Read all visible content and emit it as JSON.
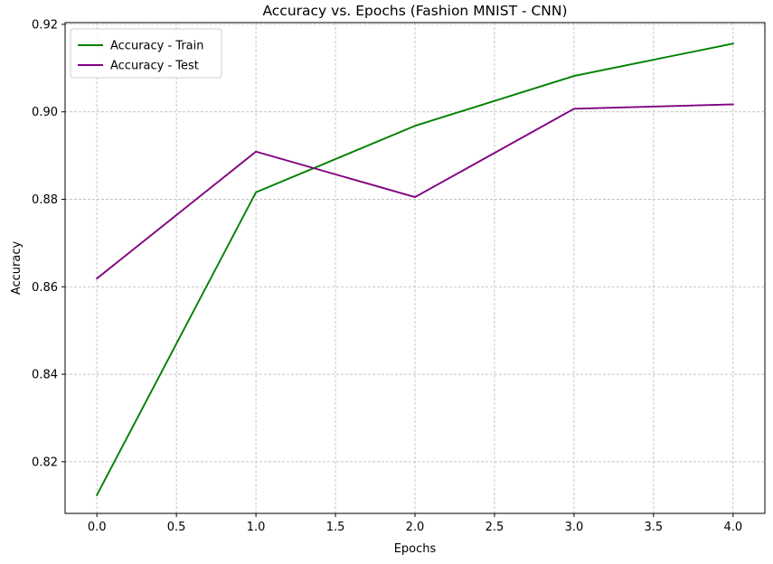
{
  "chart_data": {
    "type": "line",
    "title": "Accuracy vs. Epochs (Fashion MNIST - CNN)",
    "xlabel": "Epochs",
    "ylabel": "Accuracy",
    "xlim": [
      -0.2,
      4.2
    ],
    "ylim": [
      0.8082,
      0.9204
    ],
    "xticks": [
      0.0,
      0.5,
      1.0,
      1.5,
      2.0,
      2.5,
      3.0,
      3.5,
      4.0
    ],
    "xtick_labels": [
      "0.0",
      "0.5",
      "1.0",
      "1.5",
      "2.0",
      "2.5",
      "3.0",
      "3.5",
      "4.0"
    ],
    "yticks": [
      0.82,
      0.84,
      0.86,
      0.88,
      0.9,
      0.92
    ],
    "ytick_labels": [
      "0.82",
      "0.84",
      "0.86",
      "0.88",
      "0.90",
      "0.92"
    ],
    "grid": true,
    "legend_position": "top-left",
    "x": [
      0,
      1,
      2,
      3,
      4
    ],
    "series": [
      {
        "name": "Accuracy - Train",
        "color": "#008000",
        "values": [
          0.8124,
          0.8816,
          0.8968,
          0.9082,
          0.9156
        ]
      },
      {
        "name": "Accuracy - Test",
        "color": "#800080",
        "values": [
          0.8619,
          0.8909,
          0.8805,
          0.9007,
          0.9017
        ]
      }
    ]
  }
}
